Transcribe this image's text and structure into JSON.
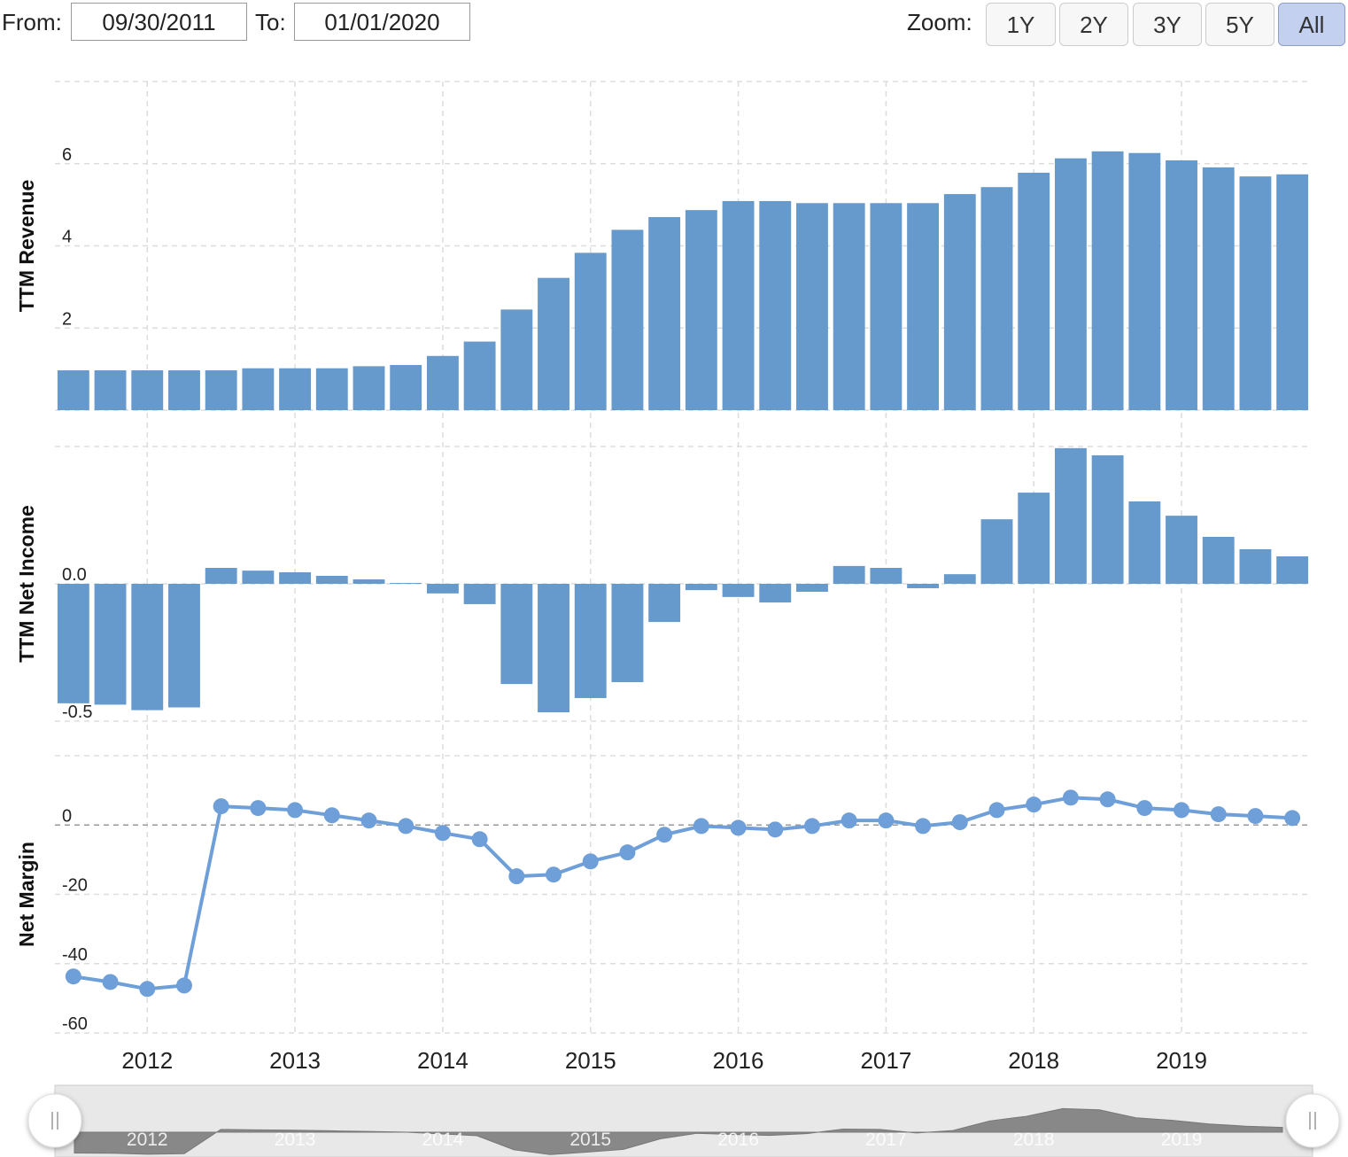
{
  "controls": {
    "from_label": "From:",
    "from": "09/30/2011",
    "to_label": "To:",
    "to": "01/01/2020",
    "zoom_label": "Zoom:",
    "zoom_buttons": [
      "1Y",
      "2Y",
      "3Y",
      "5Y",
      "All"
    ]
  },
  "chart_data": [
    {
      "type": "bar",
      "y_label": "TTM Revenue",
      "color": "#6699cc",
      "categories": [
        null,
        null,
        "2012",
        null,
        null,
        null,
        "2013",
        null,
        null,
        null,
        "2014",
        null,
        null,
        null,
        "2015",
        null,
        null,
        null,
        "2016",
        null,
        null,
        null,
        "2017",
        null,
        null,
        null,
        "2018",
        null,
        null,
        null,
        "2019",
        null,
        null,
        null
      ],
      "values": [
        0.97,
        0.97,
        0.97,
        0.97,
        0.97,
        1.02,
        1.02,
        1.02,
        1.07,
        1.1,
        1.32,
        1.67,
        2.45,
        3.22,
        3.83,
        4.39,
        4.7,
        4.87,
        5.09,
        5.09,
        5.04,
        5.04,
        5.04,
        5.04,
        5.26,
        5.43,
        5.78,
        6.13,
        6.3,
        6.26,
        6.08,
        5.91,
        5.69,
        5.74
      ],
      "ylim": [
        0,
        8
      ],
      "yticks": [
        0,
        2,
        4,
        6
      ],
      "grid": true
    },
    {
      "type": "bar",
      "y_label": "TTM Net Income",
      "color": "#6699cc",
      "categories": [
        null,
        null,
        "2012",
        null,
        null,
        null,
        "2013",
        null,
        null,
        null,
        "2014",
        null,
        null,
        null,
        "2015",
        null,
        null,
        null,
        "2016",
        null,
        null,
        null,
        "2017",
        null,
        null,
        null,
        "2018",
        null,
        null,
        null,
        "2019",
        null,
        null,
        null
      ],
      "values": [
        -0.435,
        -0.44,
        -0.46,
        -0.45,
        0.058,
        0.048,
        0.042,
        0.029,
        0.016,
        0.003,
        -0.035,
        -0.074,
        -0.365,
        -0.468,
        -0.416,
        -0.358,
        -0.139,
        -0.023,
        -0.048,
        -0.068,
        -0.029,
        0.065,
        0.058,
        -0.016,
        0.035,
        0.235,
        0.332,
        0.494,
        0.468,
        0.3,
        0.248,
        0.171,
        0.126,
        0.1
      ],
      "ylim": [
        -0.5,
        0.5
      ],
      "yticks": [
        {
          "value": 0,
          "label": "0.0"
        },
        -0.5
      ],
      "grid": true
    },
    {
      "type": "line",
      "y_label": "Net Margin",
      "color": "#6f9fd8",
      "categories": [
        null,
        null,
        "2012",
        null,
        null,
        null,
        "2013",
        null,
        null,
        null,
        "2014",
        null,
        null,
        null,
        "2015",
        null,
        null,
        null,
        "2016",
        null,
        null,
        null,
        "2017",
        null,
        null,
        null,
        "2018",
        null,
        null,
        null,
        "2019",
        null,
        null,
        null
      ],
      "values": [
        -43.7,
        -45.3,
        -47.3,
        -46.3,
        5.4,
        4.9,
        4.3,
        2.8,
        1.3,
        -0.3,
        -2.3,
        -4.1,
        -14.8,
        -14.3,
        -10.5,
        -7.9,
        -2.8,
        -0.3,
        -0.8,
        -1.3,
        -0.3,
        1.3,
        1.3,
        -0.3,
        0.8,
        4.3,
        5.9,
        7.9,
        7.4,
        4.9,
        4.3,
        3.1,
        2.6,
        2.0
      ],
      "ylim": [
        -60,
        20
      ],
      "yticks": [
        0,
        -20,
        -40,
        -60
      ],
      "grid": true
    }
  ]
}
